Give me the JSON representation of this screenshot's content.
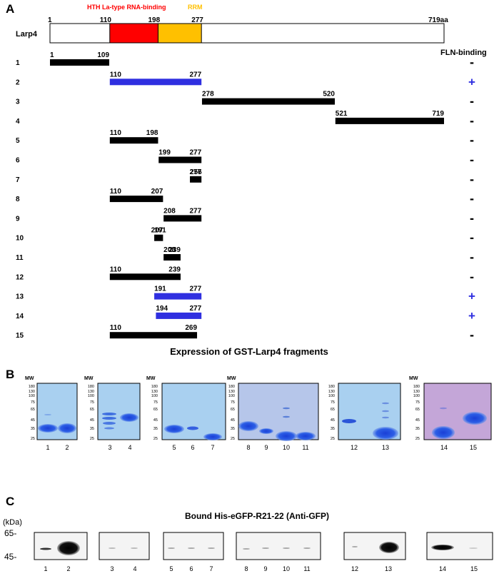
{
  "panel_a": {
    "label": "A",
    "protein_name": "Larp4",
    "domains": [
      {
        "name": "HTH La-type RNA-binding",
        "start": 110,
        "end": 198,
        "color": "#ff0000"
      },
      {
        "name": "RRM",
        "start": 198,
        "end": 277,
        "color": "#ffc000"
      }
    ],
    "boundary_labels": [
      "1",
      "110",
      "198",
      "277",
      "719aa"
    ],
    "boundary_positions": [
      1,
      110,
      198,
      277,
      719
    ],
    "binding_header": "FLN-binding",
    "fragments": [
      {
        "id": "1",
        "start": 1,
        "end": 109,
        "start_label": "1",
        "end_label": "109",
        "binding": "-"
      },
      {
        "id": "2",
        "start": 110,
        "end": 277,
        "start_label": "110",
        "end_label": "277",
        "binding": "+"
      },
      {
        "id": "3",
        "start": 278,
        "end": 520,
        "start_label": "278",
        "end_label": "520",
        "binding": "-"
      },
      {
        "id": "4",
        "start": 521,
        "end": 719,
        "start_label": "521",
        "end_label": "719",
        "binding": "-"
      },
      {
        "id": "5",
        "start": 110,
        "end": 198,
        "start_label": "110",
        "end_label": "198",
        "binding": "-"
      },
      {
        "id": "6",
        "start": 199,
        "end": 277,
        "start_label": "199",
        "end_label": "277",
        "binding": "-"
      },
      {
        "id": "7",
        "start": 256,
        "end": 277,
        "start_label": "256",
        "end_label": "277",
        "binding": "-"
      },
      {
        "id": "8",
        "start": 110,
        "end": 207,
        "start_label": "110",
        "end_label": "207",
        "binding": "-"
      },
      {
        "id": "9",
        "start": 208,
        "end": 277,
        "start_label": "208",
        "end_label": "277",
        "binding": "-"
      },
      {
        "id": "10",
        "start": 191,
        "end": 207,
        "start_label": "191",
        "end_label": "207",
        "binding": "-"
      },
      {
        "id": "11",
        "start": 208,
        "end": 239,
        "start_label": "208",
        "end_label": "239",
        "binding": "-"
      },
      {
        "id": "12",
        "start": 110,
        "end": 239,
        "start_label": "110",
        "end_label": "239",
        "binding": "-"
      },
      {
        "id": "13",
        "start": 191,
        "end": 277,
        "start_label": "191",
        "end_label": "277",
        "binding": "+"
      },
      {
        "id": "14",
        "start": 194,
        "end": 277,
        "start_label": "194",
        "end_label": "277",
        "binding": "+"
      },
      {
        "id": "15",
        "start": 110,
        "end": 269,
        "start_label": "110",
        "end_label": "269",
        "binding": "-"
      }
    ],
    "positive_color": "#2f2fe0",
    "negative_color": "#000000"
  },
  "panel_b": {
    "label": "B",
    "title": "Expression of GST-Larp4 fragments",
    "mw_label": "MW",
    "mw_markers": [
      "180",
      "130",
      "100",
      "75",
      "65",
      "45",
      "35",
      "25"
    ],
    "gels": [
      {
        "lanes": [
          "1",
          "2"
        ]
      },
      {
        "lanes": [
          "3",
          "4"
        ]
      },
      {
        "lanes": [
          "5",
          "6",
          "7"
        ]
      },
      {
        "lanes": [
          "8",
          "9",
          "10",
          "11"
        ]
      },
      {
        "lanes": [
          "12",
          "13"
        ]
      },
      {
        "lanes": [
          "14",
          "15"
        ]
      }
    ]
  },
  "panel_c": {
    "label": "C",
    "title": "Bound His-eGFP-R21-22 (Anti-GFP)",
    "unit": "(kDa)",
    "markers": [
      "65-",
      "45-"
    ],
    "blots": [
      {
        "lanes": [
          "1",
          "2"
        ]
      },
      {
        "lanes": [
          "3",
          "4"
        ]
      },
      {
        "lanes": [
          "5",
          "6",
          "7"
        ]
      },
      {
        "lanes": [
          "8",
          "9",
          "10",
          "11"
        ]
      },
      {
        "lanes": [
          "12",
          "13"
        ]
      },
      {
        "lanes": [
          "14",
          "15"
        ]
      }
    ]
  }
}
